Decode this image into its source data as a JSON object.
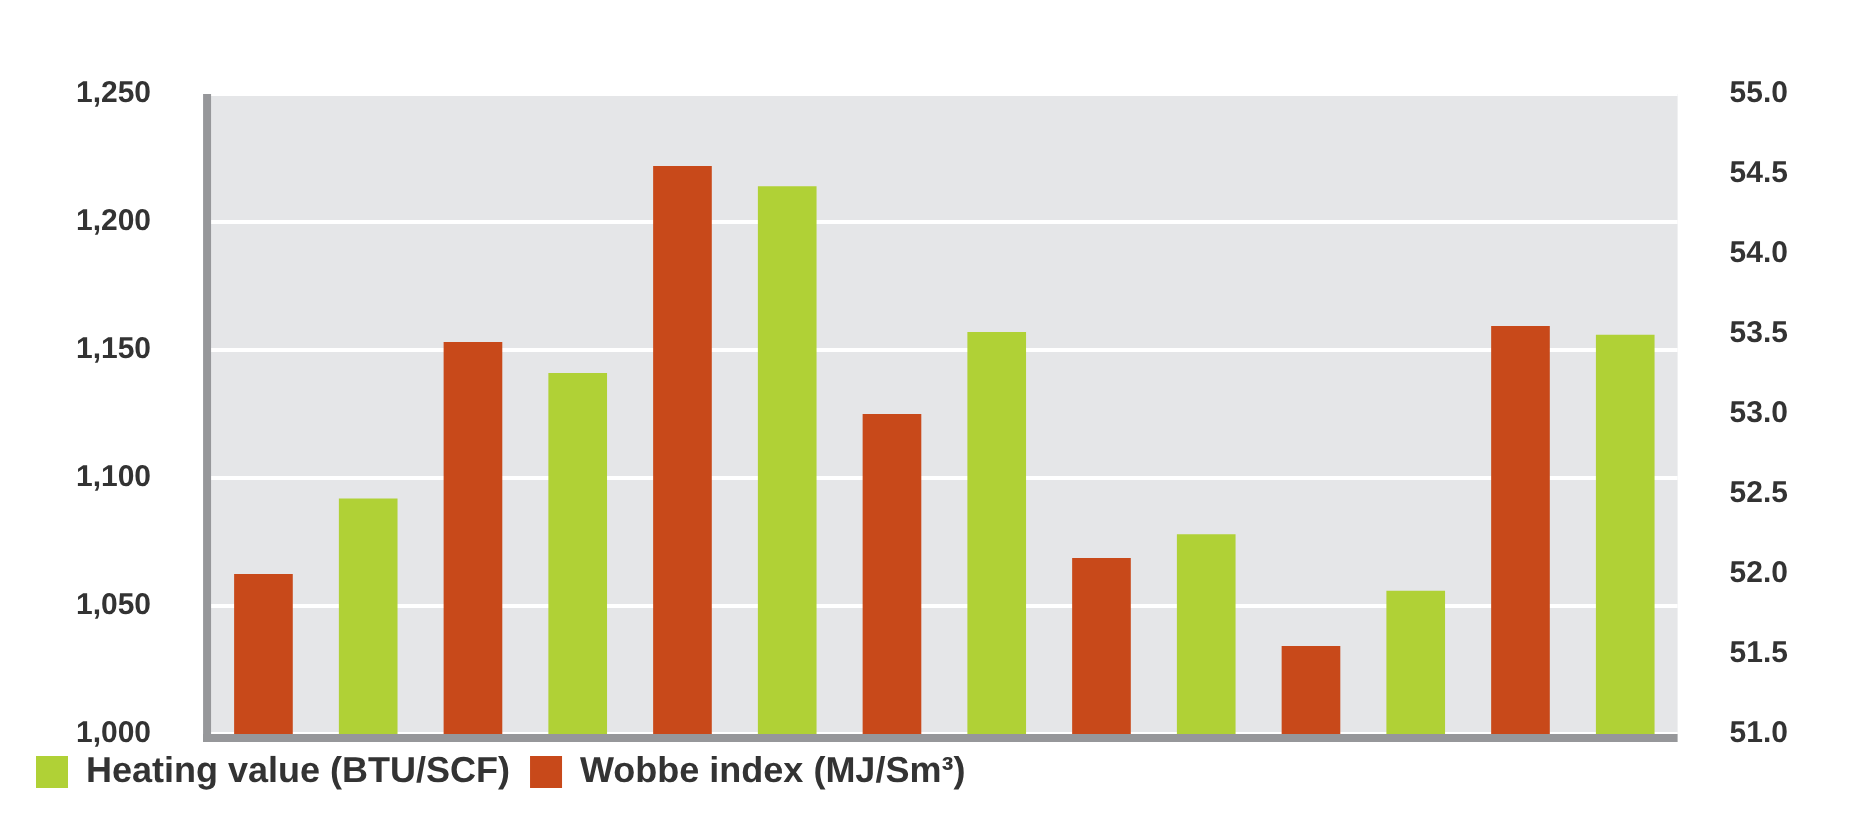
{
  "chart_data": {
    "type": "bar",
    "categories": [
      null,
      null,
      null,
      null,
      null,
      null,
      null
    ],
    "series": [
      {
        "name": "Wobbe index (MJ/Sm³)",
        "color": "#c8491a",
        "axis": "y2",
        "values": [
          52.0,
          53.45,
          54.55,
          53.0,
          52.1,
          51.55,
          53.55
        ]
      },
      {
        "name": "Heating value (BTU/SCF)",
        "color": "#b0d136",
        "values": [
          1092,
          1141,
          1214,
          1157,
          1078,
          1056,
          1156
        ]
      }
    ],
    "ylim": [
      1000,
      1250
    ],
    "yticks": [
      {
        "value": 1000,
        "label": "1,000"
      },
      {
        "value": 1050,
        "label": "1,050"
      },
      {
        "value": 1100,
        "label": "1,100"
      },
      {
        "value": 1150,
        "label": "1,150"
      },
      {
        "value": 1200,
        "label": "1,200"
      },
      {
        "value": 1250,
        "label": "1,250"
      }
    ],
    "y2lim": [
      51,
      55
    ],
    "y2ticks": [
      {
        "value": 51,
        "label": "51.0"
      },
      {
        "value": 51.5,
        "label": "51.5"
      },
      {
        "value": 52,
        "label": "52.0"
      },
      {
        "value": 52.5,
        "label": "52.5"
      },
      {
        "value": 53,
        "label": "53.0"
      },
      {
        "value": 53.5,
        "label": "53.5"
      },
      {
        "value": 54,
        "label": "54.0"
      },
      {
        "value": 54.5,
        "label": "54.5"
      },
      {
        "value": 55,
        "label": "55.0"
      }
    ],
    "grid": "y",
    "legend": "bottom left"
  }
}
